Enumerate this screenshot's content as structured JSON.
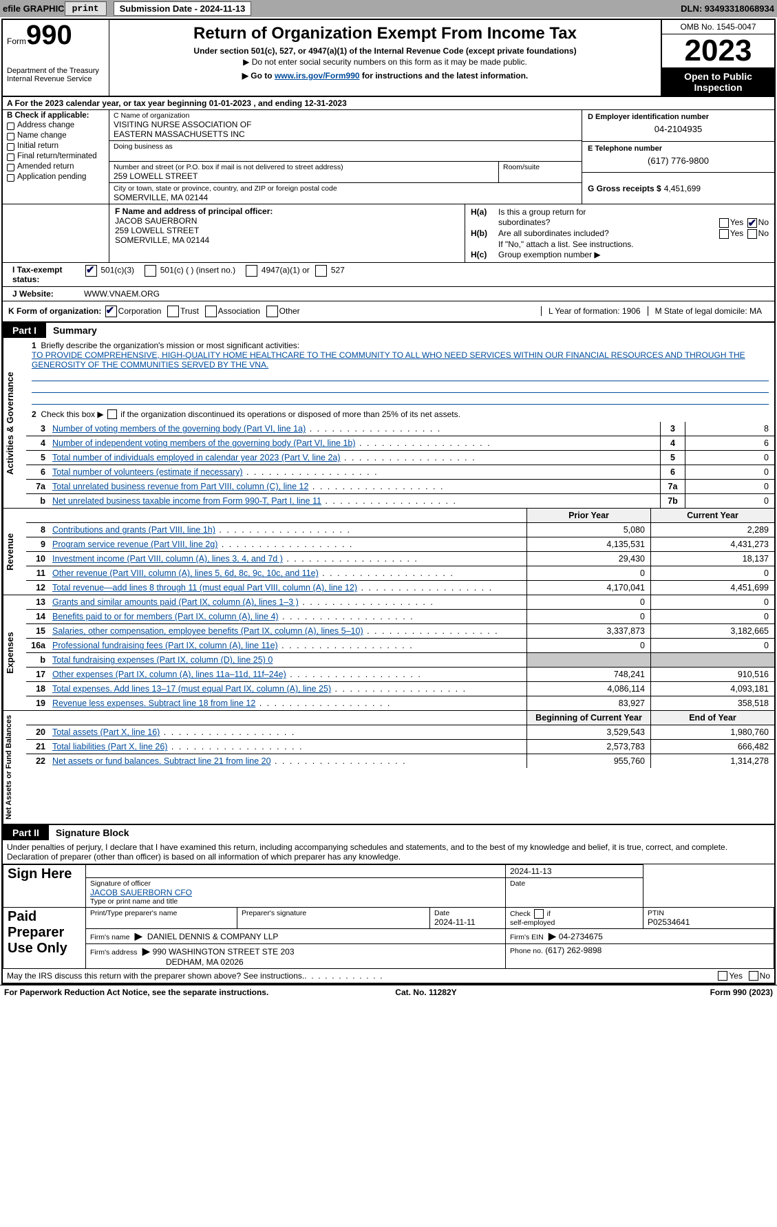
{
  "topbar": {
    "efile": "efile GRAPHIC",
    "print_btn": "print",
    "submission_label": "Submission Date - 2024-11-13",
    "dln": "DLN: 93493318068934"
  },
  "header": {
    "form_word": "Form",
    "form_num": "990",
    "dept": "Department of the Treasury\nInternal Revenue Service",
    "title": "Return of Organization Exempt From Income Tax",
    "sub1": "Under section 501(c), 527, or 4947(a)(1) of the Internal Revenue Code (except private foundations)",
    "sub2": "Do not enter social security numbers on this form as it may be made public.",
    "sub3_pre": "Go to ",
    "sub3_link": "www.irs.gov/Form990",
    "sub3_post": " for instructions and the latest information.",
    "omb": "OMB No. 1545-0047",
    "year": "2023",
    "inspect": "Open to Public Inspection"
  },
  "rowA": "A   For the 2023 calendar year, or tax year beginning 01-01-2023    , and ending 12-31-2023",
  "colB": {
    "title": "B Check if applicable:",
    "items": [
      "Address change",
      "Name change",
      "Initial return",
      "Final return/terminated",
      "Amended return",
      "Application pending"
    ]
  },
  "colC": {
    "name_lab": "C Name of organization",
    "name": "VISITING NURSE ASSOCIATION OF\nEASTERN MASSACHUSETTS INC",
    "dba_lab": "Doing business as",
    "dba": "",
    "street_lab": "Number and street (or P.O. box if mail is not delivered to street address)",
    "street": "259 LOWELL STREET",
    "room_lab": "Room/suite",
    "room": "",
    "city_lab": "City or town, state or province, country, and ZIP or foreign postal code",
    "city": "SOMERVILLE, MA  02144"
  },
  "colD": {
    "ein_lab": "D Employer identification number",
    "ein": "04-2104935",
    "tel_lab": "E Telephone number",
    "tel": "(617) 776-9800",
    "gross_lab": "G Gross receipts $",
    "gross": "4,451,699"
  },
  "f": {
    "lab": "F Name and address of principal officer:",
    "name": "JACOB SAUERBORN",
    "street": "259 LOWELL STREET",
    "city": "SOMERVILLE, MA  02144"
  },
  "h": {
    "ha": "H(a)  Is this a group return for",
    "ha2": "subordinates?",
    "hb": "H(b)  Are all subordinates included?",
    "hb2": "If \"No,\" attach a list. See instructions.",
    "hc": "H(c)  Group exemption number",
    "ha_no_checked": true
  },
  "rowI": {
    "lab": "I       Tax-exempt status:",
    "opt1": "501(c)(3)",
    "opt2": "501(c) (   ) (insert no.)",
    "opt3": "4947(a)(1) or",
    "opt4": "527",
    "checked_501c3": true
  },
  "rowJ": {
    "lab": "J      Website:",
    "val": "WWW.VNAEM.ORG"
  },
  "rowK": {
    "lab": "K Form of organization:",
    "opts": [
      "Corporation",
      "Trust",
      "Association",
      "Other"
    ],
    "checked_corp": true,
    "L": "L Year of formation: 1906",
    "M": "M State of legal domicile: MA"
  },
  "part1": {
    "hdr_num": "Part I",
    "hdr_title": "Summary",
    "side_gov": "Activities & Governance",
    "side_rev": "Revenue",
    "side_exp": "Expenses",
    "side_net": "Net Assets or Fund Balances",
    "l1_lab": "Briefly describe the organization's mission or most significant activities:",
    "l1_val": "TO PROVIDE COMPREHENSIVE, HIGH-QUALITY HOME HEALTHCARE TO THE COMMUNITY TO ALL WHO NEED SERVICES WITHIN OUR FINANCIAL RESOURCES AND THROUGH THE GENEROSITY OF THE COMMUNITIES SERVED BY THE VNA.",
    "l2": "Check this box        if the organization discontinued its operations or disposed of more than 25% of its net assets.",
    "rows_gov": [
      {
        "n": "3",
        "t": "Number of voting members of the governing body (Part VI, line 1a)",
        "box": "3",
        "v": "8"
      },
      {
        "n": "4",
        "t": "Number of independent voting members of the governing body (Part VI, line 1b)",
        "box": "4",
        "v": "6"
      },
      {
        "n": "5",
        "t": "Total number of individuals employed in calendar year 2023 (Part V, line 2a)",
        "box": "5",
        "v": "0"
      },
      {
        "n": "6",
        "t": "Total number of volunteers (estimate if necessary)",
        "box": "6",
        "v": "0"
      },
      {
        "n": "7a",
        "t": "Total unrelated business revenue from Part VIII, column (C), line 12",
        "box": "7a",
        "v": "0"
      },
      {
        "n": "b",
        "t": "Net unrelated business taxable income from Form 990-T, Part I, line 11",
        "box": "7b",
        "v": "0"
      }
    ],
    "col_prior": "Prior Year",
    "col_curr": "Current Year",
    "rows_rev": [
      {
        "n": "8",
        "t": "Contributions and grants (Part VIII, line 1h)",
        "p": "5,080",
        "c": "2,289"
      },
      {
        "n": "9",
        "t": "Program service revenue (Part VIII, line 2g)",
        "p": "4,135,531",
        "c": "4,431,273"
      },
      {
        "n": "10",
        "t": "Investment income (Part VIII, column (A), lines 3, 4, and 7d )",
        "p": "29,430",
        "c": "18,137"
      },
      {
        "n": "11",
        "t": "Other revenue (Part VIII, column (A), lines 5, 6d, 8c, 9c, 10c, and 11e)",
        "p": "0",
        "c": "0"
      },
      {
        "n": "12",
        "t": "Total revenue—add lines 8 through 11 (must equal Part VIII, column (A), line 12)",
        "p": "4,170,041",
        "c": "4,451,699"
      }
    ],
    "rows_exp": [
      {
        "n": "13",
        "t": "Grants and similar amounts paid (Part IX, column (A), lines 1–3 )",
        "p": "0",
        "c": "0"
      },
      {
        "n": "14",
        "t": "Benefits paid to or for members (Part IX, column (A), line 4)",
        "p": "0",
        "c": "0"
      },
      {
        "n": "15",
        "t": "Salaries, other compensation, employee benefits (Part IX, column (A), lines 5–10)",
        "p": "3,337,873",
        "c": "3,182,665"
      },
      {
        "n": "16a",
        "t": "Professional fundraising fees (Part IX, column (A), line 11e)",
        "p": "0",
        "c": "0"
      },
      {
        "n": "b",
        "t": "Total fundraising expenses (Part IX, column (D), line 25) 0",
        "p": "",
        "c": "",
        "grey": true
      },
      {
        "n": "17",
        "t": "Other expenses (Part IX, column (A), lines 11a–11d, 11f–24e)",
        "p": "748,241",
        "c": "910,516"
      },
      {
        "n": "18",
        "t": "Total expenses. Add lines 13–17 (must equal Part IX, column (A), line 25)",
        "p": "4,086,114",
        "c": "4,093,181"
      },
      {
        "n": "19",
        "t": "Revenue less expenses. Subtract line 18 from line 12",
        "p": "83,927",
        "c": "358,518"
      }
    ],
    "col_beg": "Beginning of Current Year",
    "col_end": "End of Year",
    "rows_net": [
      {
        "n": "20",
        "t": "Total assets (Part X, line 16)",
        "p": "3,529,543",
        "c": "1,980,760"
      },
      {
        "n": "21",
        "t": "Total liabilities (Part X, line 26)",
        "p": "2,573,783",
        "c": "666,482"
      },
      {
        "n": "22",
        "t": "Net assets or fund balances. Subtract line 21 from line 20",
        "p": "955,760",
        "c": "1,314,278"
      }
    ]
  },
  "part2": {
    "hdr_num": "Part II",
    "hdr_title": "Signature Block",
    "decl": "Under penalties of perjury, I declare that I have examined this return, including accompanying schedules and statements, and to the best of my knowledge and belief, it is true, correct, and complete. Declaration of preparer (other than officer) is based on all information of which preparer has any knowledge.",
    "sign_here": "Sign Here",
    "sig_officer_lab": "Signature of officer",
    "sig_officer": "JACOB SAUERBORN CFO",
    "sig_type_lab": "Type or print name and title",
    "date1": "2024-11-13",
    "date_lab": "Date",
    "paid": "Paid Preparer Use Only",
    "prep_name_lab": "Print/Type preparer's name",
    "prep_sig_lab": "Preparer's signature",
    "prep_date_lab": "Date",
    "prep_date": "2024-11-11",
    "check_if": "Check         if self-employed",
    "ptin_lab": "PTIN",
    "ptin": "P02534641",
    "firm_name_lab": "Firm's name",
    "firm_name": "DANIEL DENNIS & COMPANY LLP",
    "firm_ein_lab": "Firm's EIN",
    "firm_ein": "04-2734675",
    "firm_addr_lab": "Firm's address",
    "firm_addr": "990 WASHINGTON STREET STE 203",
    "firm_city": "DEDHAM, MA  02026",
    "phone_lab": "Phone no.",
    "phone": "(617) 262-9898",
    "discuss": "May the IRS discuss this return with the preparer shown above? See instructions."
  },
  "footer": {
    "left": "For Paperwork Reduction Act Notice, see the separate instructions.",
    "mid": "Cat. No. 11282Y",
    "right": "Form 990 (2023)"
  },
  "yes": "Yes",
  "no": "No"
}
